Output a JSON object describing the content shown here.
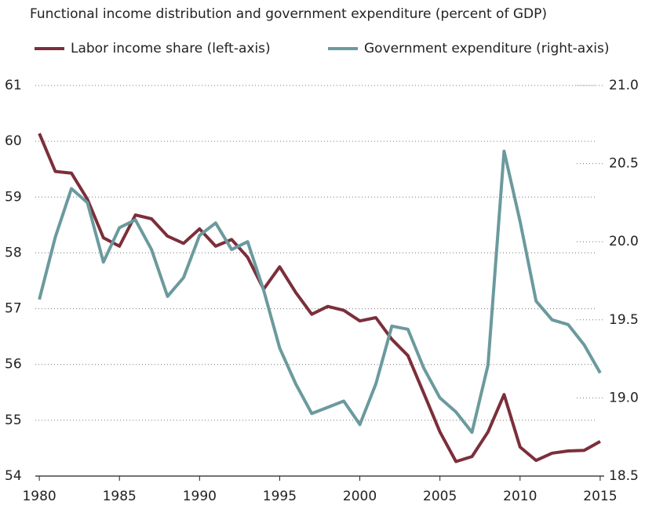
{
  "chart_data": {
    "type": "line",
    "title": "Functional income distribution and government expenditure (percent of GDP)",
    "x": [
      1980,
      1981,
      1982,
      1983,
      1984,
      1985,
      1986,
      1987,
      1988,
      1989,
      1990,
      1991,
      1992,
      1993,
      1994,
      1995,
      1996,
      1997,
      1998,
      1999,
      2000,
      2001,
      2002,
      2003,
      2004,
      2005,
      2006,
      2007,
      2008,
      2009,
      2010,
      2011,
      2012,
      2013,
      2014,
      2015
    ],
    "xlim": [
      1979.75,
      2015.25
    ],
    "xticks": [
      1980,
      1985,
      1990,
      1995,
      2000,
      2005,
      2010,
      2015
    ],
    "ylim": [
      54,
      61
    ],
    "yticks": [
      54,
      55,
      56,
      57,
      58,
      59,
      60,
      61
    ],
    "y2lim": [
      18.5,
      21
    ],
    "y2ticks": [
      {
        "value": 18.5,
        "label": "18.5"
      },
      {
        "value": 19,
        "label": "19.0"
      },
      {
        "value": 19.5,
        "label": "19.5"
      },
      {
        "value": 20,
        "label": "20.0"
      },
      {
        "value": 20.5,
        "label": "20.5"
      },
      {
        "value": 21,
        "label": "21.0"
      }
    ],
    "grid": true,
    "series": [
      {
        "name": "Labor income share (left-axis)",
        "color": "#7b2f3a",
        "axis": "y",
        "values": [
          60.14,
          59.46,
          59.43,
          58.96,
          58.27,
          58.12,
          58.68,
          58.61,
          58.3,
          58.17,
          58.43,
          58.12,
          58.24,
          57.92,
          57.35,
          57.75,
          57.29,
          56.9,
          57.04,
          56.97,
          56.78,
          56.84,
          56.45,
          56.16,
          55.48,
          54.79,
          54.26,
          54.35,
          54.79,
          55.46,
          54.52,
          54.28,
          54.41,
          54.45,
          54.46,
          54.62
        ]
      },
      {
        "name": "Government expenditure (right-axis)",
        "color": "#6b9a9d",
        "axis": "y2",
        "values": [
          19.63,
          20.03,
          20.34,
          20.25,
          19.87,
          20.09,
          20.14,
          19.95,
          19.65,
          19.77,
          20.04,
          20.12,
          19.95,
          20.0,
          19.69,
          19.32,
          19.09,
          18.9,
          18.94,
          18.98,
          18.83,
          19.09,
          19.46,
          19.44,
          19.19,
          19.0,
          18.91,
          18.78,
          19.21,
          20.58,
          20.13,
          19.62,
          19.5,
          19.47,
          19.34,
          19.16
        ]
      }
    ]
  }
}
